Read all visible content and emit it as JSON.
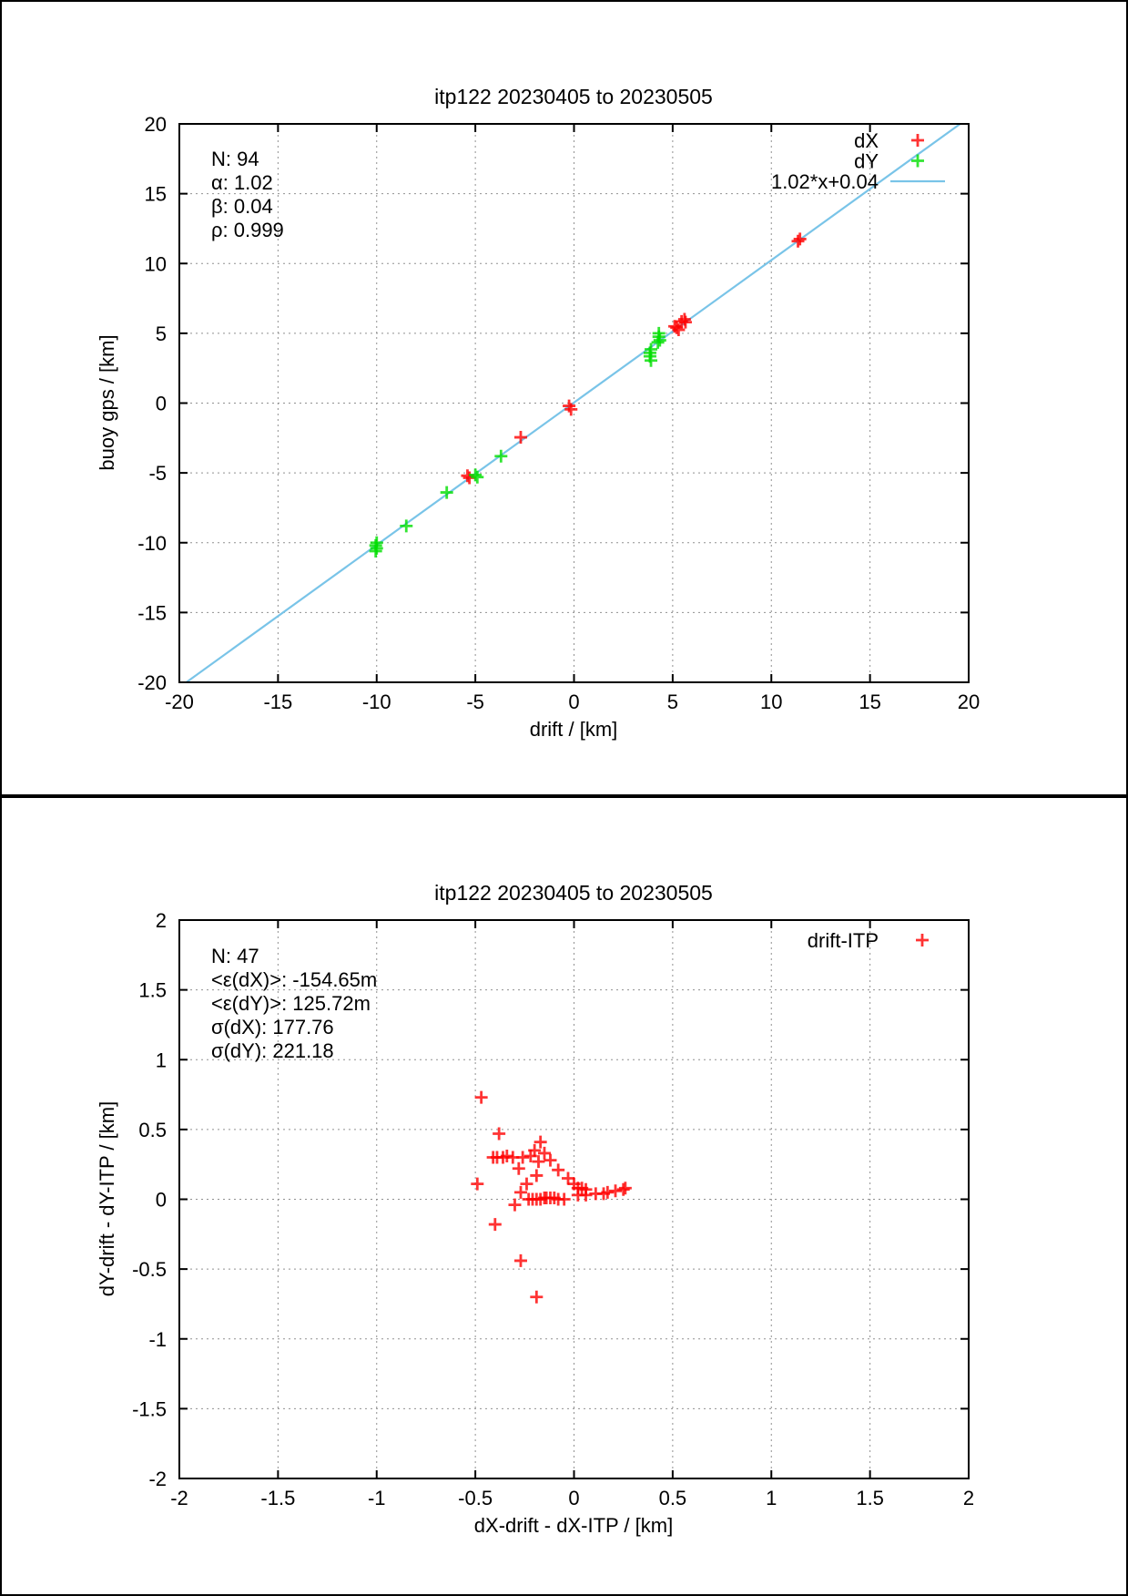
{
  "page": {
    "background": "#ffffff",
    "border_color": "#000000"
  },
  "colors": {
    "dx_red": "#ff0000",
    "dy_green": "#00df00",
    "fit_blue": "#79c4e8",
    "grid_gray": "#909090"
  },
  "charts": [
    {
      "title": "itp122 20230405 to 20230505",
      "xlabel": "drift / [km]",
      "ylabel": "buoy gps / [km]",
      "stats": [
        "N: 94",
        "α: 1.02",
        "β: 0.04",
        "ρ: 0.999"
      ],
      "chart_data": {
        "type": "scatter",
        "xlim": [
          -20,
          20
        ],
        "ylim": [
          -20,
          20
        ],
        "xticks": [
          -20,
          -15,
          -10,
          -5,
          0,
          5,
          10,
          15,
          20
        ],
        "yticks": [
          -20,
          -15,
          -10,
          -5,
          0,
          5,
          10,
          15,
          20
        ],
        "xtick_labels": [
          "-20",
          "-15",
          "-10",
          "-5",
          "0",
          "5",
          "10",
          "15",
          "20"
        ],
        "ytick_labels": [
          "-20",
          "-15",
          "-10",
          "-5",
          "0",
          "5",
          "10",
          "15",
          "20"
        ],
        "grid": true,
        "legend_position": "top-right",
        "series": [
          {
            "name": "dX",
            "marker": "plus",
            "color_key": "dx_red",
            "points": [
              [
                -5.4,
                -5.2
              ],
              [
                -5.3,
                -5.35
              ],
              [
                -2.7,
                -2.45
              ],
              [
                -0.25,
                -0.2
              ],
              [
                -0.15,
                -0.45
              ],
              [
                5.1,
                5.5
              ],
              [
                5.2,
                5.4
              ],
              [
                5.3,
                5.25
              ],
              [
                5.45,
                5.85
              ],
              [
                5.6,
                6.0
              ],
              [
                5.65,
                5.8
              ],
              [
                11.35,
                11.6
              ],
              [
                11.45,
                11.75
              ]
            ]
          },
          {
            "name": "dY",
            "marker": "plus",
            "color_key": "dy_green",
            "points": [
              [
                -10.0,
                -10.0
              ],
              [
                -10.05,
                -10.2
              ],
              [
                -10.0,
                -10.4
              ],
              [
                -10.05,
                -10.6
              ],
              [
                -8.5,
                -8.8
              ],
              [
                -6.45,
                -6.4
              ],
              [
                -5.0,
                -5.15
              ],
              [
                -4.9,
                -5.3
              ],
              [
                -3.7,
                -3.8
              ],
              [
                3.9,
                3.85
              ],
              [
                3.85,
                3.6
              ],
              [
                3.85,
                3.35
              ],
              [
                3.9,
                3.05
              ],
              [
                4.3,
                5.0
              ],
              [
                4.3,
                4.75
              ],
              [
                4.35,
                4.5
              ],
              [
                4.25,
                4.35
              ]
            ]
          },
          {
            "name": "1.02*x+0.04",
            "marker": "line",
            "color_key": "fit_blue",
            "slope": 1.02,
            "intercept": 0.04
          }
        ]
      }
    },
    {
      "title": "itp122 20230405 to 20230505",
      "xlabel": "dX-drift - dX-ITP / [km]",
      "ylabel": "dY-drift - dY-ITP / [km]",
      "stats": [
        "N: 47",
        "<ε(dX)>:  -154.65m",
        "<ε(dY)>: 125.72m",
        "σ(dX):  177.76",
        "σ(dY):  221.18"
      ],
      "chart_data": {
        "type": "scatter",
        "xlim": [
          -2,
          2
        ],
        "ylim": [
          -2,
          2
        ],
        "xticks": [
          -2,
          -1.5,
          -1,
          -0.5,
          0,
          0.5,
          1,
          1.5,
          2
        ],
        "yticks": [
          -2,
          -1.5,
          -1,
          -0.5,
          0,
          0.5,
          1,
          1.5,
          2
        ],
        "xtick_labels": [
          "-2",
          "-1.5",
          "-1",
          "-0.5",
          "0",
          "0.5",
          "1",
          "1.5",
          "2"
        ],
        "ytick_labels": [
          "-2",
          "-1.5",
          "-1",
          "-0.5",
          "0",
          "0.5",
          "1",
          "1.5",
          "2"
        ],
        "grid": true,
        "legend_position": "top-right",
        "series": [
          {
            "name": "drift-ITP",
            "marker": "plus",
            "color_key": "dx_red",
            "points": [
              [
                -0.47,
                0.73
              ],
              [
                -0.38,
                0.47
              ],
              [
                -0.17,
                0.41
              ],
              [
                -0.2,
                0.35
              ],
              [
                -0.41,
                0.3
              ],
              [
                -0.39,
                0.3
              ],
              [
                -0.36,
                0.3
              ],
              [
                -0.34,
                0.31
              ],
              [
                -0.31,
                0.3
              ],
              [
                -0.26,
                0.3
              ],
              [
                -0.22,
                0.31
              ],
              [
                -0.18,
                0.27
              ],
              [
                -0.15,
                0.33
              ],
              [
                -0.12,
                0.28
              ],
              [
                -0.28,
                0.22
              ],
              [
                -0.08,
                0.21
              ],
              [
                -0.19,
                0.17
              ],
              [
                -0.03,
                0.15
              ],
              [
                -0.24,
                0.11
              ],
              [
                -0.49,
                0.11
              ],
              [
                0.0,
                0.11
              ],
              [
                -0.27,
                0.05
              ],
              [
                0.02,
                0.08
              ],
              [
                0.04,
                0.08
              ],
              [
                0.06,
                0.07
              ],
              [
                0.02,
                0.03
              ],
              [
                0.06,
                0.03
              ],
              [
                0.11,
                0.04
              ],
              [
                0.15,
                0.04
              ],
              [
                0.17,
                0.05
              ],
              [
                0.21,
                0.06
              ],
              [
                0.25,
                0.07
              ],
              [
                0.26,
                0.08
              ],
              [
                -0.3,
                -0.04
              ],
              [
                -0.23,
                0.0
              ],
              [
                -0.21,
                0.0
              ],
              [
                -0.19,
                0.0
              ],
              [
                -0.17,
                0.0
              ],
              [
                -0.15,
                0.01
              ],
              [
                -0.14,
                0.01
              ],
              [
                -0.12,
                0.01
              ],
              [
                -0.1,
                0.01
              ],
              [
                -0.08,
                0.0
              ],
              [
                -0.05,
                0.0
              ],
              [
                -0.4,
                -0.18
              ],
              [
                -0.27,
                -0.44
              ],
              [
                -0.19,
                -0.7
              ]
            ]
          }
        ]
      }
    }
  ]
}
